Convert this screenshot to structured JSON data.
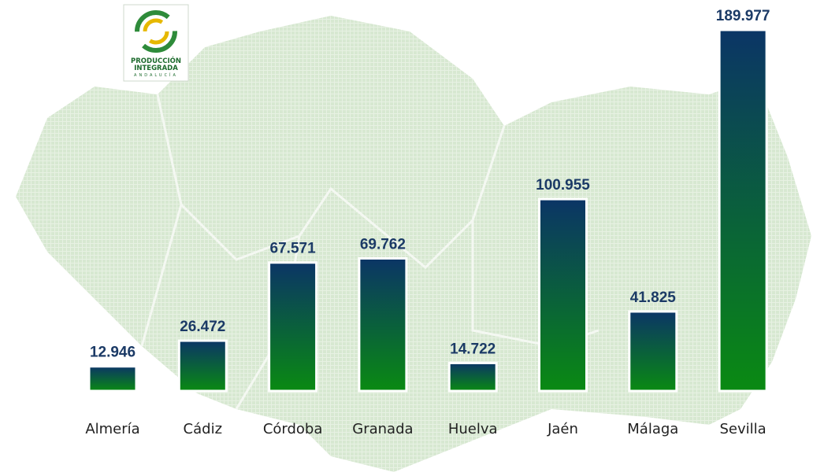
{
  "logo": [
    "PRODUCCIÓN",
    "INTEGRADA",
    "ANDALUCÍA"
  ],
  "chart_data": {
    "type": "bar",
    "categories": [
      "Almería",
      "Cádiz",
      "Córdoba",
      "Granada",
      "Huelva",
      "Jaén",
      "Málaga",
      "Sevilla"
    ],
    "values": [
      12946,
      26472,
      67571,
      69762,
      14722,
      100955,
      41825,
      189977
    ],
    "value_labels": [
      "12.946",
      "26.472",
      "67.571",
      "69.762",
      "14.722",
      "100.955",
      "41.825",
      "189.977"
    ],
    "gradient": [
      "#0b3566",
      "#0a8a12"
    ]
  }
}
